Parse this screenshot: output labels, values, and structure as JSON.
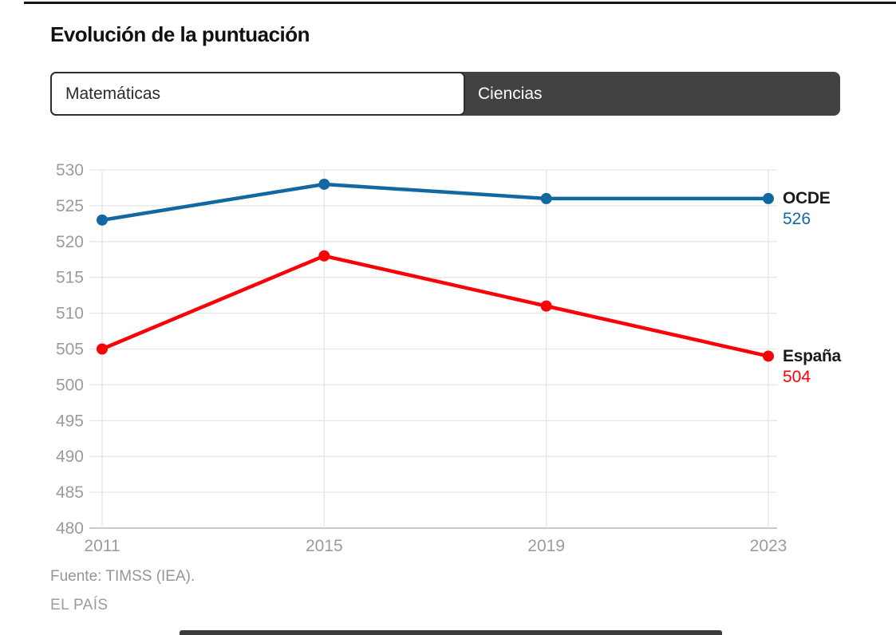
{
  "page": {
    "title": "Evolución de la puntuación",
    "source": "Fuente: TIMSS (IEA).",
    "brand": "EL PAÍS"
  },
  "tabs": [
    {
      "label": "Matemáticas",
      "active": true
    },
    {
      "label": "Ciencias",
      "active": false
    }
  ],
  "colors": {
    "ocde_blue": "#1269a2",
    "espana_red": "#fb0007",
    "gridline": "#e6e6e6",
    "axis_line": "#c9c9c9",
    "tick_label": "#9b9b9b",
    "tab_dark": "#424242",
    "tab_border": "#2e2e2e",
    "footer_text": "#959595",
    "title_text": "#111111"
  },
  "chart_data": {
    "type": "line",
    "title": "Evolución de la puntuación",
    "x": [
      2011,
      2015,
      2019,
      2023
    ],
    "series": [
      {
        "name": "OCDE",
        "values": [
          523,
          528,
          526,
          526
        ],
        "color": "#1269a2",
        "end_label": {
          "name": "OCDE",
          "value": "526"
        }
      },
      {
        "name": "España",
        "values": [
          505,
          518,
          511,
          504
        ],
        "color": "#fb0007",
        "end_label": {
          "name": "España",
          "value": "504"
        }
      }
    ],
    "xlabel": "",
    "ylabel": "",
    "ylim": [
      480,
      530
    ],
    "ytick_step": 5,
    "grid": true,
    "legend_position": "right-of-line-end"
  }
}
